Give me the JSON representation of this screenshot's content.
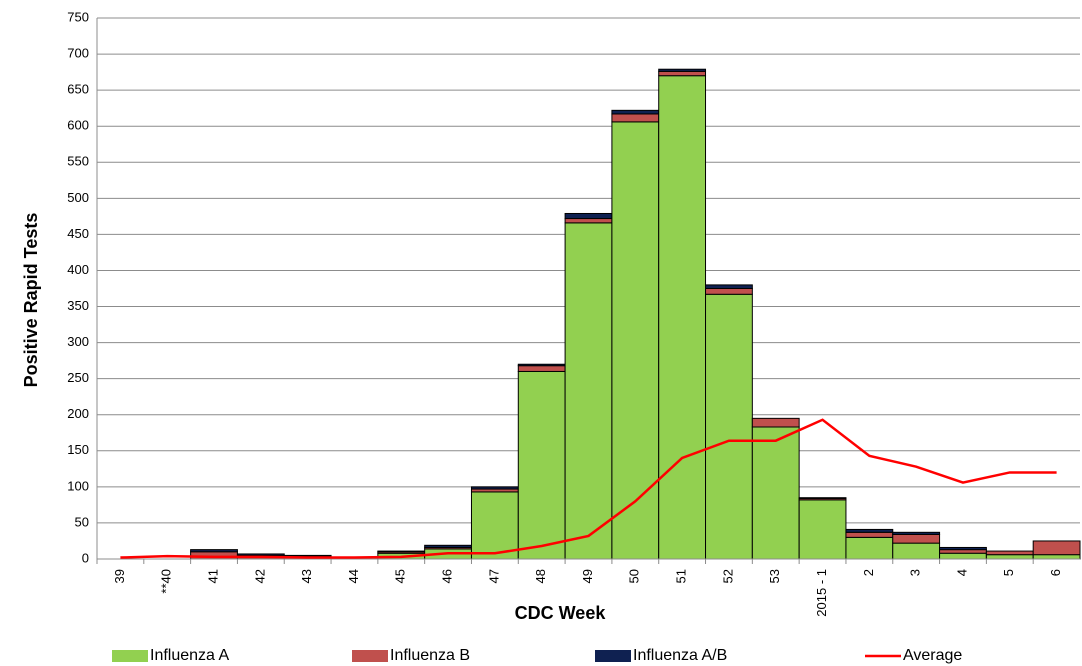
{
  "chart_data": {
    "type": "stacked_bar_line",
    "x_label": "CDC Week",
    "y_label": "Positive Rapid Tests",
    "categories": [
      "39",
      "**40",
      "41",
      "42",
      "43",
      "44",
      "45",
      "46",
      "47",
      "48",
      "49",
      "50",
      "51",
      "52",
      "53",
      "2015 - 1",
      "2",
      "3",
      "4",
      "5",
      "6"
    ],
    "series": [
      {
        "name": "Influenza A",
        "color": "#92d050",
        "values": [
          0,
          0,
          0,
          0,
          0,
          0,
          8,
          14,
          93,
          260,
          466,
          606,
          670,
          367,
          183,
          82,
          30,
          22,
          8,
          6,
          6
        ]
      },
      {
        "name": "Influenza B",
        "color": "#c0504d",
        "values": [
          0,
          0,
          10,
          5,
          4,
          2,
          2,
          2,
          4,
          8,
          6,
          11,
          6,
          8,
          12,
          2,
          7,
          12,
          5,
          5,
          19
        ]
      },
      {
        "name": "Influenza A/B",
        "color": "#0f2151",
        "values": [
          0,
          0,
          3,
          2,
          1,
          0,
          1,
          3,
          3,
          2,
          7,
          5,
          3,
          5,
          0,
          1,
          4,
          3,
          3,
          0,
          0
        ]
      },
      {
        "name": "Average",
        "type": "line",
        "color": "#ff0000",
        "values": [
          2,
          4,
          3,
          3,
          2,
          2,
          3,
          8,
          8,
          18,
          32,
          80,
          140,
          164,
          164,
          193,
          143,
          128,
          106,
          120,
          120
        ]
      }
    ],
    "ylim": [
      0,
      750
    ],
    "yticks": [
      0,
      50,
      100,
      150,
      200,
      250,
      300,
      350,
      400,
      450,
      500,
      550,
      600,
      650,
      700,
      750
    ],
    "grid": true,
    "legend": "bottom"
  }
}
